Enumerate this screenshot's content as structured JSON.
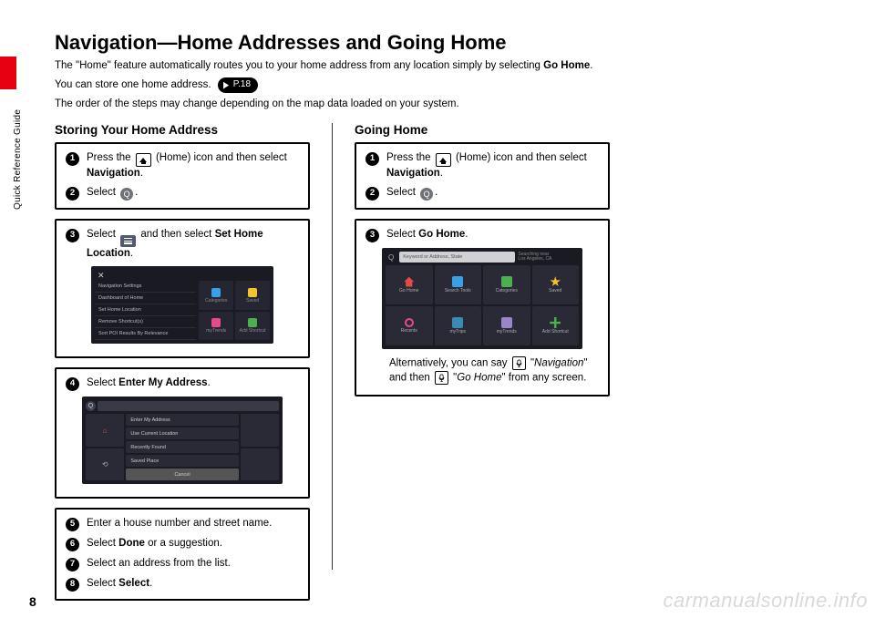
{
  "sidebar": {
    "tab_label": "Quick Reference Guide",
    "page_number": "8"
  },
  "watermark": "carmanualsonline.info",
  "header": {
    "title": "Navigation—Home Addresses and Going Home",
    "intro_before": "The \"Home\" feature automatically routes you to your home address from any location simply by selecting ",
    "intro_bold": "Go Home",
    "intro_after": ".",
    "line2_before": "You can store one home address.",
    "page_ref": "P.18",
    "line3": "The order of the steps may change depending on the map data loaded on your system."
  },
  "left": {
    "heading": "Storing Your Home Address",
    "step1_before": "Press the ",
    "step1_mid": " (Home) icon and then select ",
    "step1_bold": "Navigation",
    "step1_after": ".",
    "step2_before": "Select ",
    "step2_after": ".",
    "step3_before": "Select ",
    "step3_mid": " and then select ",
    "step3_bold": "Set Home Location",
    "step3_after": ".",
    "step4_before": "Select ",
    "step4_bold": "Enter My Address",
    "step4_after": ".",
    "step5": "Enter a house number and street name.",
    "step6_before": "Select ",
    "step6_bold": "Done",
    "step6_after": " or a suggestion.",
    "step7": "Select an address from the list.",
    "step8_before": "Select ",
    "step8_bold": "Select",
    "step8_after": ".",
    "ss_a": {
      "menu": [
        "Navigation Settings",
        "Dashboard of Home",
        "Set Home Location",
        "Remove Shortcut(s)",
        "Sort POI Results\nBy Relevance"
      ],
      "cells": [
        {
          "label": "Categories",
          "color": "#3aa0e6"
        },
        {
          "label": "Saved",
          "color": "#f4c430"
        },
        {
          "label": "myTrends",
          "color": "#e34b8a"
        },
        {
          "label": "Add Shortcut",
          "color": "#4caf50"
        }
      ]
    },
    "ss_c": {
      "list": [
        "Enter My Address",
        "Use Current Location",
        "Recently Found",
        "Saved Place"
      ],
      "cancel": "Cancel"
    }
  },
  "divider_height": 490,
  "right": {
    "heading": "Going Home",
    "step1_before": "Press the ",
    "step1_mid": " (Home) icon and then select ",
    "step1_bold": "Navigation",
    "step1_after": ".",
    "step2_before": "Select ",
    "step2_after": ".",
    "step3_before": "Select ",
    "step3_bold": "Go Home",
    "step3_after": ".",
    "ss_b": {
      "search_placeholder": "Keyword or Address, State",
      "loc1": "Searching near",
      "loc2": "Los Angeles, CA",
      "tiles": [
        {
          "label": "Go Home",
          "color": "#e34b4b",
          "shape": "house"
        },
        {
          "label": "Search Tools",
          "color": "#3aa0e6"
        },
        {
          "label": "Categories",
          "color": "#4caf50"
        },
        {
          "label": "Saved",
          "color": "#f4c430",
          "shape": "star"
        },
        {
          "label": "Recents",
          "color": "#e34b8a",
          "shape": "clock"
        },
        {
          "label": "myTrips",
          "color": "#3a8ab4"
        },
        {
          "label": "myTrends",
          "color": "#9a85c9"
        },
        {
          "label": "Add Shortcut",
          "color": "#4caf50",
          "shape": "plus"
        }
      ]
    },
    "alt_before": "Alternatively, you can say ",
    "alt_nav": "Navigation",
    "alt_mid": " and then ",
    "alt_go": "Go Home",
    "alt_after": " from any screen."
  }
}
